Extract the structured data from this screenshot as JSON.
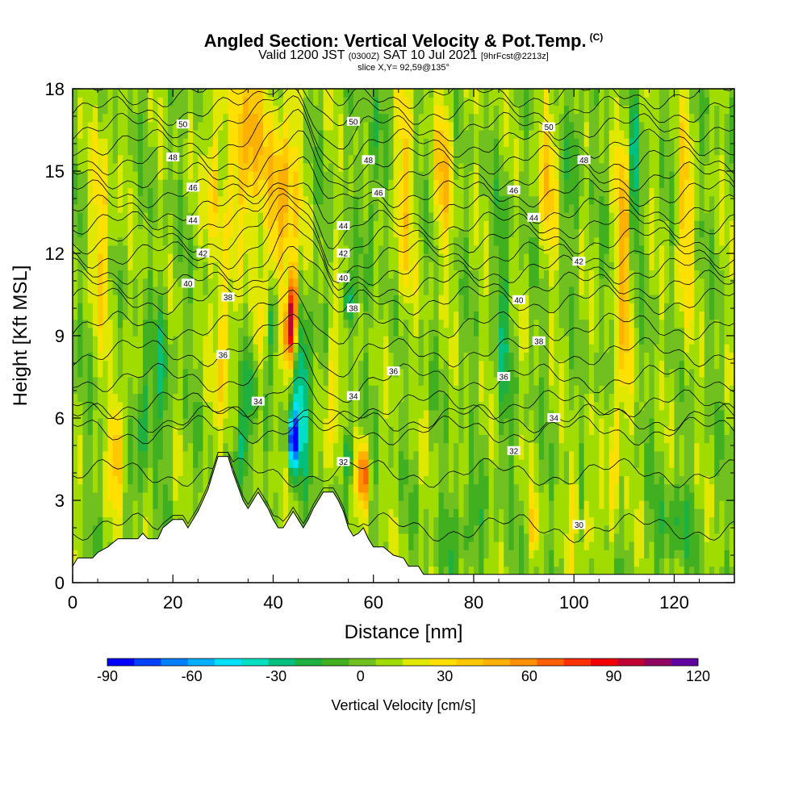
{
  "header": {
    "title": "Angled Section: Vertical Velocity & Pot.Temp.",
    "copyright": "(C)",
    "valid_prefix": "Valid 1200 JST",
    "valid_utc": "(0300Z)",
    "valid_date": "SAT 10 Jul 2021",
    "forecast": "[9hrFcst@2213z]",
    "slice": "slice X,Y= 92,59@135°"
  },
  "chart_data": {
    "type": "heatmap",
    "xlabel": "Distance [nm]",
    "ylabel": "Height [Kft MSL]",
    "xlim": [
      0,
      132
    ],
    "ylim": [
      0,
      18
    ],
    "x_ticks": [
      "0",
      "20",
      "40",
      "60",
      "80",
      "100",
      "120"
    ],
    "y_ticks": [
      "0",
      "3",
      "6",
      "9",
      "12",
      "15",
      "18"
    ],
    "colorbar": {
      "label": "Vertical Velocity [cm/s]",
      "range": [
        -90,
        120
      ],
      "step": 10,
      "tick_labels": [
        "-90",
        "-60",
        "-30",
        "0",
        "30",
        "60",
        "90",
        "120"
      ],
      "colors": [
        "#0000ff",
        "#0040ff",
        "#0080ff",
        "#00b0ff",
        "#00e0ff",
        "#00e0c0",
        "#00c080",
        "#20b040",
        "#40b020",
        "#70c020",
        "#a0dc00",
        "#e0e800",
        "#ffe000",
        "#ffc800",
        "#ffb000",
        "#ff9000",
        "#ff6000",
        "#ff3000",
        "#f00000",
        "#c00030",
        "#900060",
        "#6000a0"
      ]
    },
    "terrain_profile": [
      [
        0,
        0.6
      ],
      [
        1,
        0.9
      ],
      [
        2,
        0.9
      ],
      [
        3,
        0.9
      ],
      [
        4,
        0.9
      ],
      [
        5,
        1.1
      ],
      [
        7,
        1.3
      ],
      [
        9,
        1.6
      ],
      [
        11,
        1.6
      ],
      [
        13,
        1.6
      ],
      [
        14,
        1.8
      ],
      [
        15,
        1.6
      ],
      [
        17,
        1.6
      ],
      [
        18,
        2.0
      ],
      [
        20,
        2.3
      ],
      [
        22,
        2.3
      ],
      [
        23,
        2.0
      ],
      [
        24,
        2.3
      ],
      [
        25,
        2.6
      ],
      [
        26,
        3.0
      ],
      [
        27,
        3.4
      ],
      [
        28,
        4.0
      ],
      [
        29,
        4.6
      ],
      [
        31,
        4.6
      ],
      [
        32,
        4.0
      ],
      [
        33,
        3.5
      ],
      [
        34,
        3.0
      ],
      [
        35,
        2.7
      ],
      [
        36,
        3.0
      ],
      [
        37,
        3.3
      ],
      [
        38,
        3.0
      ],
      [
        39,
        2.7
      ],
      [
        40,
        2.3
      ],
      [
        41,
        2.0
      ],
      [
        42,
        2.0
      ],
      [
        43,
        2.3
      ],
      [
        44,
        2.6
      ],
      [
        45,
        2.3
      ],
      [
        46,
        2.0
      ],
      [
        47,
        2.3
      ],
      [
        48,
        2.7
      ],
      [
        49,
        3.0
      ],
      [
        50,
        3.3
      ],
      [
        52,
        3.3
      ],
      [
        53,
        3.0
      ],
      [
        54,
        2.6
      ],
      [
        55,
        2.0
      ],
      [
        56,
        1.7
      ],
      [
        57,
        1.8
      ],
      [
        58,
        2.0
      ],
      [
        59,
        1.6
      ],
      [
        60,
        1.3
      ],
      [
        62,
        1.3
      ],
      [
        64,
        1.0
      ],
      [
        66,
        0.9
      ],
      [
        67,
        0.6
      ],
      [
        69,
        0.6
      ],
      [
        70,
        0.3
      ],
      [
        71,
        0.3
      ],
      [
        72,
        0.3
      ],
      [
        132,
        0.3
      ]
    ],
    "theta_contours": [
      {
        "label": "50",
        "label_x": 22,
        "label_y": 16.7
      },
      {
        "label": "48",
        "label_x": 20,
        "label_y": 15.5
      },
      {
        "label": "46",
        "label_x": 24,
        "label_y": 14.4
      },
      {
        "label": "44",
        "label_x": 24,
        "label_y": 13.2
      },
      {
        "label": "42",
        "label_x": 26,
        "label_y": 12.0
      },
      {
        "label": "40",
        "label_x": 23,
        "label_y": 10.9
      },
      {
        "label": "38",
        "label_x": 31,
        "label_y": 10.4
      },
      {
        "label": "36",
        "label_x": 30,
        "label_y": 8.3
      },
      {
        "label": "34",
        "label_x": 37,
        "label_y": 6.6
      },
      {
        "label": "50",
        "label_x": 56,
        "label_y": 16.8
      },
      {
        "label": "48",
        "label_x": 59,
        "label_y": 15.4
      },
      {
        "label": "46",
        "label_x": 61,
        "label_y": 14.2
      },
      {
        "label": "44",
        "label_x": 54,
        "label_y": 13.0
      },
      {
        "label": "42",
        "label_x": 54,
        "label_y": 12.0
      },
      {
        "label": "40",
        "label_x": 54,
        "label_y": 11.1
      },
      {
        "label": "38",
        "label_x": 56,
        "label_y": 10.0
      },
      {
        "label": "36",
        "label_x": 64,
        "label_y": 7.7
      },
      {
        "label": "34",
        "label_x": 56,
        "label_y": 6.8
      },
      {
        "label": "32",
        "label_x": 54,
        "label_y": 4.4
      },
      {
        "label": "50",
        "label_x": 95,
        "label_y": 16.6
      },
      {
        "label": "48",
        "label_x": 102,
        "label_y": 15.4
      },
      {
        "label": "46",
        "label_x": 88,
        "label_y": 14.3
      },
      {
        "label": "44",
        "label_x": 92,
        "label_y": 13.3
      },
      {
        "label": "42",
        "label_x": 101,
        "label_y": 11.7
      },
      {
        "label": "40",
        "label_x": 89,
        "label_y": 10.3
      },
      {
        "label": "38",
        "label_x": 93,
        "label_y": 8.8
      },
      {
        "label": "36",
        "label_x": 86,
        "label_y": 7.5
      },
      {
        "label": "34",
        "label_x": 96,
        "label_y": 6.0
      },
      {
        "label": "32",
        "label_x": 88,
        "label_y": 4.8
      },
      {
        "label": "30",
        "label_x": 101,
        "label_y": 2.1
      }
    ],
    "velocity_features": [
      {
        "x": 35,
        "y": 16,
        "sx": 3,
        "sy": 3.5,
        "amp": 50
      },
      {
        "x": 42,
        "y": 14,
        "sx": 3,
        "sy": 4,
        "amp": 45
      },
      {
        "x": 44,
        "y": 10,
        "sx": 1,
        "sy": 1.5,
        "amp": 85
      },
      {
        "x": 43,
        "y": 9,
        "sx": 1,
        "sy": 1.2,
        "amp": 55
      },
      {
        "x": 58,
        "y": 4,
        "sx": 1,
        "sy": 1.2,
        "amp": 75
      },
      {
        "x": 52,
        "y": 7,
        "sx": 1.2,
        "sy": 3,
        "amp": 35
      },
      {
        "x": 30,
        "y": 9,
        "sx": 1.5,
        "sy": 4,
        "amp": 35
      },
      {
        "x": 37,
        "y": 9,
        "sx": 1.2,
        "sy": 2,
        "amp": 35
      },
      {
        "x": 9,
        "y": 5,
        "sx": 1.5,
        "sy": 2,
        "amp": 45
      },
      {
        "x": 6,
        "y": 13,
        "sx": 2,
        "sy": 4,
        "amp": 30
      },
      {
        "x": 28,
        "y": 15,
        "sx": 1.5,
        "sy": 3,
        "amp": 35
      },
      {
        "x": 66,
        "y": 14,
        "sx": 2,
        "sy": 4,
        "amp": 30
      },
      {
        "x": 74,
        "y": 15,
        "sx": 2,
        "sy": 3,
        "amp": 35
      },
      {
        "x": 95,
        "y": 15,
        "sx": 2,
        "sy": 3,
        "amp": 30
      },
      {
        "x": 110,
        "y": 12,
        "sx": 1.5,
        "sy": 5,
        "amp": 45
      },
      {
        "x": 108,
        "y": 5,
        "sx": 1.2,
        "sy": 3,
        "amp": 30
      },
      {
        "x": 122,
        "y": 13,
        "sx": 1.5,
        "sy": 4,
        "amp": 35
      },
      {
        "x": 92,
        "y": 2,
        "sx": 0.8,
        "sy": 1,
        "amp": 35
      },
      {
        "x": 103,
        "y": 2,
        "sx": 0.8,
        "sy": 1.2,
        "amp": 40
      },
      {
        "x": 100,
        "y": 3,
        "sx": 1,
        "sy": 2,
        "amp": 25
      },
      {
        "x": 44,
        "y": 5.2,
        "sx": 1,
        "sy": 1,
        "amp": -90
      },
      {
        "x": 46,
        "y": 7,
        "sx": 2,
        "sy": 3,
        "amp": -45
      },
      {
        "x": 40,
        "y": 9.5,
        "sx": 1,
        "sy": 1.5,
        "amp": -45
      },
      {
        "x": 55,
        "y": 10.2,
        "sx": 1,
        "sy": 1,
        "amp": -55
      },
      {
        "x": 35,
        "y": 7,
        "sx": 1.5,
        "sy": 2,
        "amp": -35
      },
      {
        "x": 34,
        "y": 5,
        "sx": 1,
        "sy": 1.5,
        "amp": -35
      },
      {
        "x": 55,
        "y": 4.5,
        "sx": 1,
        "sy": 1,
        "amp": -40
      },
      {
        "x": 14,
        "y": 6,
        "sx": 1.5,
        "sy": 2,
        "amp": -35
      },
      {
        "x": 18,
        "y": 8,
        "sx": 1.5,
        "sy": 3,
        "amp": -25
      },
      {
        "x": 112,
        "y": 15,
        "sx": 1.2,
        "sy": 3,
        "amp": -35
      },
      {
        "x": 86,
        "y": 9,
        "sx": 1.5,
        "sy": 5,
        "amp": -20
      },
      {
        "x": 78,
        "y": 2,
        "sx": 4,
        "sy": 1.5,
        "amp": -20
      },
      {
        "x": 120,
        "y": 2,
        "sx": 4,
        "sy": 1.5,
        "amp": -20
      },
      {
        "x": 60,
        "y": 15,
        "sx": 1.5,
        "sy": 4,
        "amp": -20
      },
      {
        "x": 100,
        "y": 16,
        "sx": 1.5,
        "sy": 3,
        "amp": -20
      }
    ]
  }
}
